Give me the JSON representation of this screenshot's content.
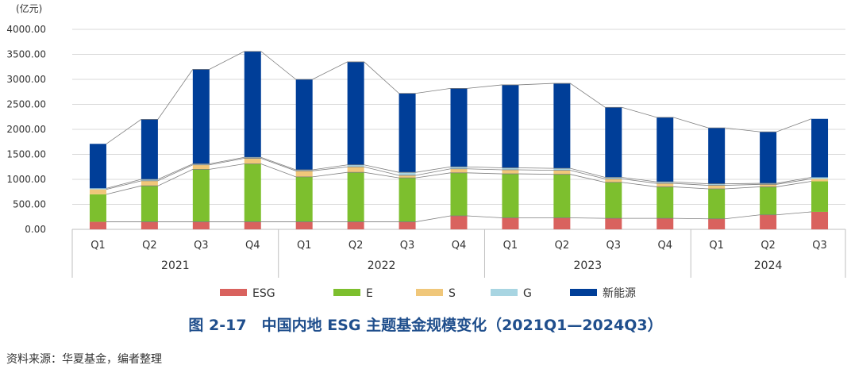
{
  "chart_data": {
    "type": "bar",
    "stacked": true,
    "unit_label": "(亿元)",
    "ylim": [
      0,
      4000
    ],
    "yticks": [
      "0.00",
      "500.00",
      "1000.00",
      "1500.00",
      "2000.00",
      "2500.00",
      "3000.00",
      "3500.00",
      "4000.00"
    ],
    "grid": true,
    "legend_position": "bottom",
    "categories": [
      "Q1",
      "Q2",
      "Q3",
      "Q4",
      "Q1",
      "Q2",
      "Q3",
      "Q4",
      "Q1",
      "Q2",
      "Q3",
      "Q4",
      "Q1",
      "Q2",
      "Q3"
    ],
    "groups": [
      {
        "label": "2021",
        "count": 4
      },
      {
        "label": "2022",
        "count": 4
      },
      {
        "label": "2023",
        "count": 4
      },
      {
        "label": "2024",
        "count": 3
      }
    ],
    "series": [
      {
        "name": "ESG",
        "color": "#D9625E",
        "values": [
          150,
          150,
          150,
          150,
          150,
          150,
          150,
          270,
          230,
          230,
          220,
          220,
          210,
          290,
          350
        ]
      },
      {
        "name": "E",
        "color": "#7DBF2E",
        "values": [
          550,
          720,
          1050,
          1160,
          900,
          990,
          880,
          860,
          880,
          870,
          720,
          630,
          600,
          560,
          610
        ]
      },
      {
        "name": "S",
        "color": "#F0C77A",
        "values": [
          100,
          100,
          90,
          110,
          120,
          110,
          50,
          80,
          80,
          80,
          70,
          70,
          70,
          50,
          50
        ]
      },
      {
        "name": "G",
        "color": "#A8D5E2",
        "values": [
          20,
          30,
          20,
          20,
          20,
          40,
          60,
          40,
          40,
          40,
          30,
          30,
          30,
          20,
          30
        ]
      },
      {
        "name": "新能源",
        "color": "#003E98",
        "values": [
          890,
          1200,
          1890,
          2120,
          1810,
          2060,
          1580,
          1570,
          1660,
          1700,
          1400,
          1290,
          1120,
          1030,
          1170
        ]
      }
    ],
    "connector_lines": true
  },
  "figure": {
    "caption": "图 2-17　中国内地 ESG 主题基金规模变化（2021Q1—2024Q3）",
    "source": "资料来源：华夏基金，编者整理"
  }
}
